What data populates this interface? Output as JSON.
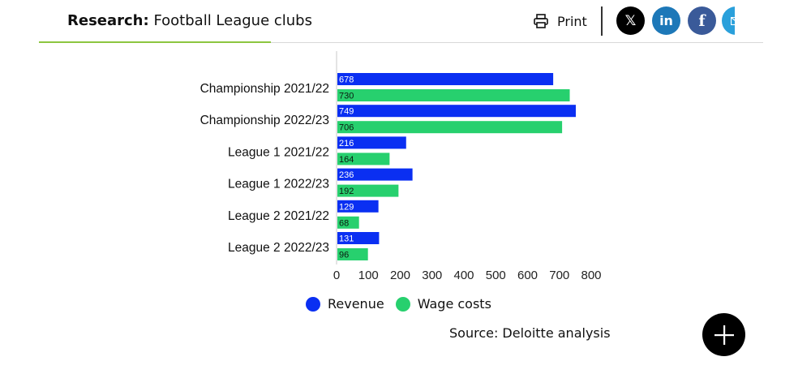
{
  "header": {
    "title_prefix": "Research:",
    "title_text": "Football League clubs",
    "print_label": "Print",
    "accent_color": "#8cc63f"
  },
  "share": [
    {
      "icon": "x-icon",
      "glyph": "𝕏"
    },
    {
      "icon": "linkedin-icon",
      "glyph": "in"
    },
    {
      "icon": "facebook-icon",
      "glyph": "f"
    },
    {
      "icon": "email-icon",
      "glyph": ""
    }
  ],
  "chart_data": {
    "type": "bar",
    "orientation": "horizontal",
    "categories": [
      "Championship 2021/22",
      "Championship 2022/23",
      "League 1 2021/22",
      "League 1 2022/23",
      "League 2 2021/22",
      "League 2 2022/23"
    ],
    "series": [
      {
        "name": "Revenue",
        "color": "#0a2ff2",
        "values": [
          678,
          749,
          216,
          236,
          129,
          131
        ]
      },
      {
        "name": "Wage costs",
        "color": "#27d06e",
        "values": [
          730,
          706,
          164,
          192,
          68,
          96
        ]
      }
    ],
    "xlim": [
      0,
      800
    ],
    "xticks": [
      0,
      100,
      200,
      300,
      400,
      500,
      600,
      700,
      800
    ],
    "data_labels": true,
    "legend_position": "bottom"
  },
  "source": "Source: Deloitte analysis",
  "fab": {
    "icon": "plus-icon"
  }
}
